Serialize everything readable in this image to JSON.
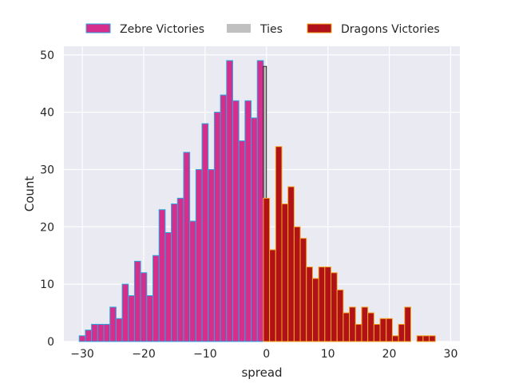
{
  "chart_data": {
    "type": "bar",
    "subtype": "histogram",
    "xlabel": "spread",
    "ylabel": "Count",
    "xlim": [
      -33,
      31.5
    ],
    "ylim": [
      0,
      51.5
    ],
    "xticks": [
      -30,
      -20,
      -10,
      0,
      10,
      20,
      30
    ],
    "yticks": [
      0,
      10,
      20,
      30,
      40,
      50
    ],
    "grid": true,
    "background": "#eaeaf2",
    "legend_position": "top",
    "bin_width": 1,
    "series": [
      {
        "name": "Zebre Victories",
        "fill": "#d62e8c",
        "edge": "#29a9e0",
        "bins": [
          {
            "x": -30,
            "count": 1
          },
          {
            "x": -29,
            "count": 2
          },
          {
            "x": -28,
            "count": 3
          },
          {
            "x": -27,
            "count": 3
          },
          {
            "x": -26,
            "count": 3
          },
          {
            "x": -25,
            "count": 6
          },
          {
            "x": -24,
            "count": 4
          },
          {
            "x": -23,
            "count": 10
          },
          {
            "x": -22,
            "count": 8
          },
          {
            "x": -21,
            "count": 14
          },
          {
            "x": -20,
            "count": 12
          },
          {
            "x": -19,
            "count": 8
          },
          {
            "x": -18,
            "count": 15
          },
          {
            "x": -17,
            "count": 23
          },
          {
            "x": -16,
            "count": 19
          },
          {
            "x": -15,
            "count": 24
          },
          {
            "x": -14,
            "count": 25
          },
          {
            "x": -13,
            "count": 33
          },
          {
            "x": -12,
            "count": 21
          },
          {
            "x": -11,
            "count": 30
          },
          {
            "x": -10,
            "count": 38
          },
          {
            "x": -9,
            "count": 30
          },
          {
            "x": -8,
            "count": 40
          },
          {
            "x": -7,
            "count": 43
          },
          {
            "x": -6,
            "count": 49
          },
          {
            "x": -5,
            "count": 42
          },
          {
            "x": -4,
            "count": 35
          },
          {
            "x": -3,
            "count": 42
          },
          {
            "x": -2,
            "count": 39
          },
          {
            "x": -1,
            "count": 49
          }
        ]
      },
      {
        "name": "Ties",
        "fill": "#c0c0c0",
        "edge": "#000000",
        "bins": [
          {
            "x": -0.5,
            "count": 48
          }
        ]
      },
      {
        "name": "Dragons Victories",
        "fill": "#b01217",
        "edge": "#f5a623",
        "bins": [
          {
            "x": 0,
            "count": 25
          },
          {
            "x": 1,
            "count": 16
          },
          {
            "x": 2,
            "count": 34
          },
          {
            "x": 3,
            "count": 24
          },
          {
            "x": 4,
            "count": 27
          },
          {
            "x": 5,
            "count": 20
          },
          {
            "x": 6,
            "count": 18
          },
          {
            "x": 7,
            "count": 13
          },
          {
            "x": 8,
            "count": 11
          },
          {
            "x": 9,
            "count": 13
          },
          {
            "x": 10,
            "count": 13
          },
          {
            "x": 11,
            "count": 12
          },
          {
            "x": 12,
            "count": 9
          },
          {
            "x": 13,
            "count": 5
          },
          {
            "x": 14,
            "count": 6
          },
          {
            "x": 15,
            "count": 3
          },
          {
            "x": 16,
            "count": 6
          },
          {
            "x": 17,
            "count": 5
          },
          {
            "x": 18,
            "count": 3
          },
          {
            "x": 19,
            "count": 4
          },
          {
            "x": 20,
            "count": 4
          },
          {
            "x": 21,
            "count": 1
          },
          {
            "x": 22,
            "count": 3
          },
          {
            "x": 23,
            "count": 6
          },
          {
            "x": 25,
            "count": 1
          },
          {
            "x": 26,
            "count": 1
          },
          {
            "x": 27,
            "count": 1
          }
        ]
      }
    ]
  }
}
